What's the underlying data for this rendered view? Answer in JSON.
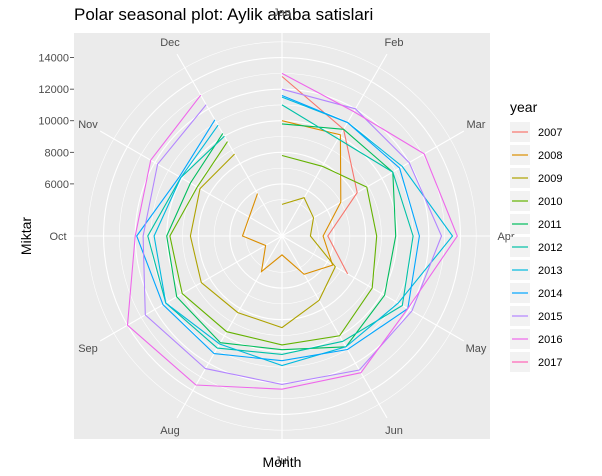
{
  "chart_data": {
    "type": "line",
    "coordinate_system": "polar",
    "title": "Polar seasonal plot: Aylik araba satislari",
    "xlabel": "Month",
    "ylabel": "Miktar",
    "categories": [
      "Jan",
      "Feb",
      "Mar",
      "Apr",
      "May",
      "Jun",
      "Jul",
      "Aug",
      "Sep",
      "Oct",
      "Nov",
      "Dec"
    ],
    "radial_ticks": [
      6000,
      8000,
      10000,
      12000,
      14000
    ],
    "rlim": [
      2700,
      16000
    ],
    "legend_title": "year",
    "legend_position": "right",
    "grid": true,
    "background": "#ebebeb",
    "series": [
      {
        "name": "2007",
        "color": "#f8766d",
        "values": [
          12800,
          10500,
          8200,
          5600,
          7500,
          null,
          null,
          null,
          null,
          null,
          null,
          null
        ]
      },
      {
        "name": "2008",
        "color": "#db8e00",
        "values": [
          10000,
          10100,
          7000,
          5300,
          6400,
          5500,
          3900,
          5300,
          3900,
          5200,
          5100,
          5800
        ]
      },
      {
        "name": "2009",
        "color": "#aea200",
        "values": [
          4700,
          5500,
          5000,
          4500,
          6600,
          7400,
          8500,
          8300,
          8600,
          8500,
          8700,
          8700
        ]
      },
      {
        "name": "2010",
        "color": "#64b200",
        "values": [
          7800,
          7800,
          8900,
          8700,
          9300,
          10000,
          9600,
          9700,
          10000,
          9800,
          8900,
          9600
        ]
      },
      {
        "name": "2011",
        "color": "#00bd5c",
        "values": [
          9800,
          10500,
          10800,
          9900,
          10200,
          10800,
          9900,
          10500,
          10400,
          10000,
          9400,
          10200
        ]
      },
      {
        "name": "2012",
        "color": "#00c1a7",
        "values": [
          11000,
          9800,
          10800,
          11000,
          11500,
          10400,
          10200,
          10900,
          11200,
          11200,
          10100,
          10000
        ]
      },
      {
        "name": "2013",
        "color": "#00bade",
        "values": [
          11500,
          11000,
          11500,
          13500,
          11200,
          10800,
          10900,
          10600,
          11200,
          10800,
          10100,
          10800
        ]
      },
      {
        "name": "2014",
        "color": "#00a6ff",
        "values": [
          11600,
          11000,
          11300,
          11400,
          11900,
          11000,
          10600,
          11300,
          11400,
          11900,
          10200,
          11200
        ]
      },
      {
        "name": "2015",
        "color": "#b385ff",
        "values": [
          12000,
          12000,
          12000,
          12800,
          12200,
          12500,
          12100,
          12400,
          12700,
          11500,
          11800,
          12300
        ]
      },
      {
        "name": "2016",
        "color": "#ef67eb",
        "values": [
          13000,
          11800,
          13100,
          13800,
          11900,
          12700,
          12400,
          13600,
          14000,
          12000,
          12300,
          13000
        ]
      },
      {
        "name": "2017",
        "color": "#ff63b6",
        "values": [
          13500,
          null,
          null,
          null,
          null,
          null,
          null,
          null,
          null,
          null,
          null,
          null
        ]
      }
    ]
  }
}
